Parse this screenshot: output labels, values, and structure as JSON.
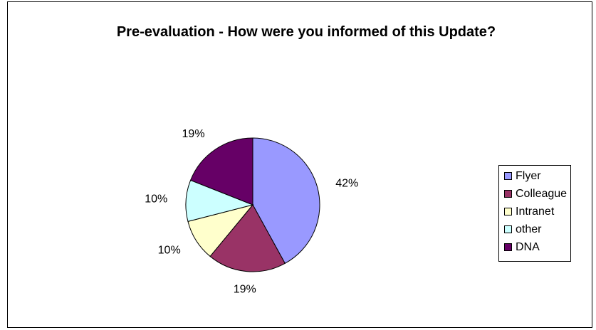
{
  "chart_data": {
    "type": "pie",
    "title": "Pre-evaluation - How were you informed of this Update?",
    "categories": [
      "Flyer",
      "Colleague",
      "Intranet",
      "other",
      "DNA"
    ],
    "values": [
      42,
      19,
      10,
      10,
      19
    ],
    "value_labels": [
      "42%",
      "19%",
      "10%",
      "10%",
      "19%"
    ],
    "colors": [
      "#9999ff",
      "#993366",
      "#ffffcc",
      "#ccffff",
      "#660066"
    ],
    "legend": "right"
  }
}
